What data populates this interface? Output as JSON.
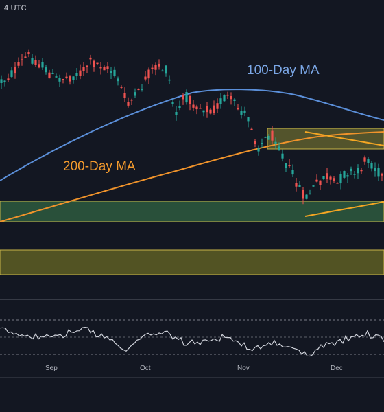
{
  "header": {
    "timezone_text": "4 UTC"
  },
  "chart_data": {
    "type": "candlestick",
    "x_axis": {
      "ticks": [
        "Sep",
        "Oct",
        "Nov",
        "Dec"
      ]
    },
    "annotations": {
      "ma100_label": "100-Day MA",
      "ma200_label": "200-Day MA"
    },
    "colors": {
      "background": "#131722",
      "up": "#26a69a",
      "down": "#ef5350",
      "ma100": "#5b8fd9",
      "ma200": "#f0932b",
      "green_zone": "#2e5a3e",
      "yellow_zone": "#5a5a24",
      "zone_border": "#c9b648",
      "rsi": "#d1d4dc",
      "trendline": "#f5a623"
    },
    "grid": false,
    "rsi_pane": {
      "levels": [
        70,
        50,
        30
      ]
    }
  }
}
